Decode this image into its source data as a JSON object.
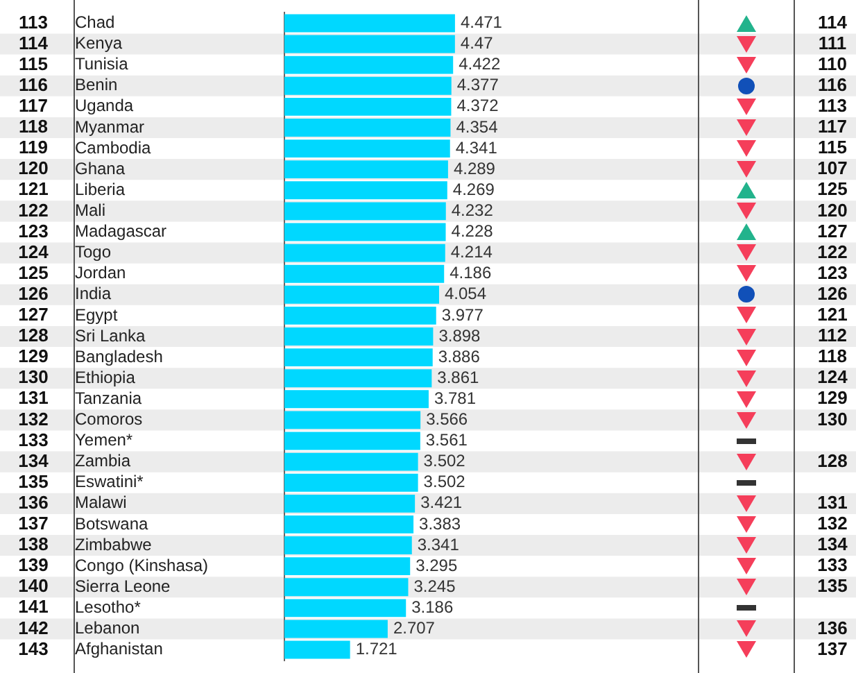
{
  "chart_data": {
    "type": "bar",
    "orientation": "horizontal",
    "categories": [
      "Chad",
      "Kenya",
      "Tunisia",
      "Benin",
      "Uganda",
      "Myanmar",
      "Cambodia",
      "Ghana",
      "Liberia",
      "Mali",
      "Madagascar",
      "Togo",
      "Jordan",
      "India",
      "Egypt",
      "Sri Lanka",
      "Bangladesh",
      "Ethiopia",
      "Tanzania",
      "Comoros",
      "Yemen*",
      "Zambia",
      "Eswatini*",
      "Malawi",
      "Botswana",
      "Zimbabwe",
      "Congo (Kinshasa)",
      "Sierra Leone",
      "Lesotho*",
      "Lebanon",
      "Afghanistan"
    ],
    "values": [
      4.471,
      4.47,
      4.422,
      4.377,
      4.372,
      4.354,
      4.341,
      4.289,
      4.269,
      4.232,
      4.228,
      4.214,
      4.186,
      4.054,
      3.977,
      3.898,
      3.886,
      3.861,
      3.781,
      3.566,
      3.561,
      3.502,
      3.502,
      3.421,
      3.383,
      3.341,
      3.295,
      3.245,
      3.186,
      2.707,
      1.721
    ],
    "color": "#00d8ff",
    "data_labels": true,
    "grid": false,
    "legend": false,
    "tick_labels": "y",
    "annotations": [
      "113",
      "114",
      "114",
      "111",
      "115",
      "110",
      "116",
      "116",
      "117",
      "113",
      "118",
      "117",
      "119",
      "115",
      "120",
      "107",
      "121",
      "125",
      "122",
      "120",
      "123",
      "127",
      "124",
      "122",
      "125",
      "123",
      "126",
      "126",
      "127",
      "121",
      "128",
      "112",
      "129",
      "118",
      "130",
      "124",
      "131",
      "129",
      "132",
      "130",
      "133",
      null,
      "134",
      "128",
      "135",
      null,
      "136",
      "131",
      "137",
      "132",
      "138",
      "134",
      "139",
      "133",
      "140",
      "135",
      "141",
      null,
      "142",
      "136",
      "143",
      "137"
    ]
  }
}
